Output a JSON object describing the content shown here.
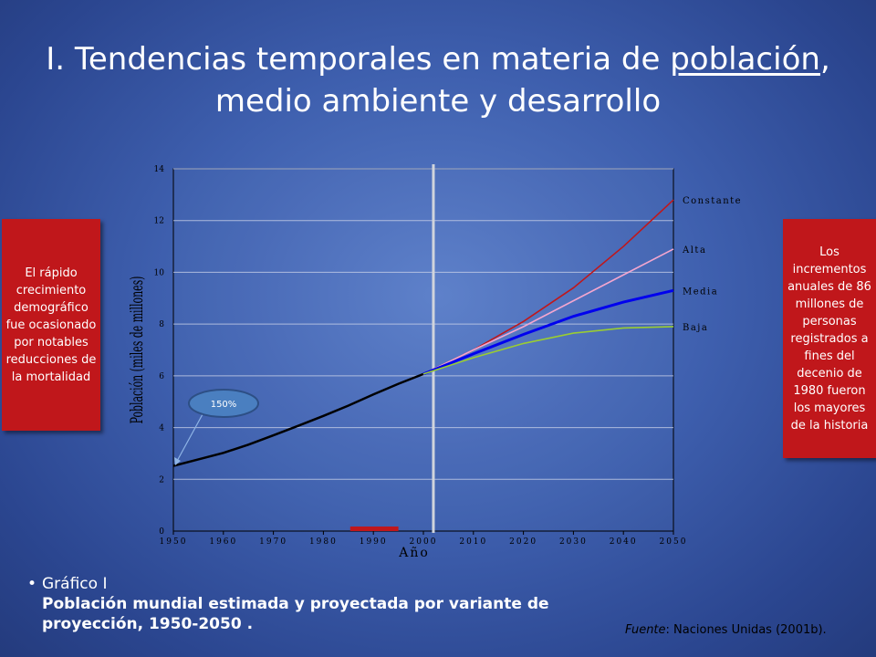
{
  "slide": {
    "title_part1": "I. Tendencias temporales en materia de ",
    "title_underlined": "población",
    "title_part2": ",",
    "title_line2": "medio ambiente y desarrollo",
    "left_note": "El rápido crecimiento demográfico fue ocasionado por notables reducciones de la mortalidad",
    "right_note": "Los incrementos anuales de 86 millones de personas registrados a fines del decenio de 1980 fueron los mayores de la historia",
    "bullet": "•",
    "caption_line1": "Gráfico I",
    "caption_line2": "Población mundial estimada y proyectada por variante de proyección, 1950-2050 .",
    "source_italic": "Fuente",
    "source_rest": ": Naciones Unidas (2001b).",
    "colors": {
      "note_box": "#c0171b",
      "callout_bubble": "#4a7fc0"
    }
  },
  "chart_data": {
    "type": "line",
    "xlabel": "Año",
    "ylabel": "Población (miles de millones)",
    "xlim": [
      1950,
      2050
    ],
    "ylim": [
      0,
      14
    ],
    "xticks": [
      1950,
      1960,
      1970,
      1980,
      1990,
      2000,
      2010,
      2020,
      2030,
      2040,
      2050
    ],
    "yticks": [
      0,
      2,
      4,
      6,
      8,
      10,
      12,
      14
    ],
    "grid": true,
    "divider_year": 2002,
    "callout": "150%",
    "highlight_range": [
      1985,
      1995
    ],
    "series": [
      {
        "name": "",
        "color": "#000000",
        "x": [
          1950,
          1955,
          1960,
          1965,
          1970,
          1975,
          1980,
          1985,
          1990,
          1995,
          2000
        ],
        "y": [
          2.52,
          2.77,
          3.02,
          3.34,
          3.7,
          4.07,
          4.45,
          4.85,
          5.28,
          5.69,
          6.07
        ]
      },
      {
        "name": "Constante",
        "color": "#c0171b",
        "x": [
          2000,
          2010,
          2020,
          2030,
          2040,
          2050
        ],
        "y": [
          6.07,
          7.0,
          8.1,
          9.4,
          11.0,
          12.8
        ]
      },
      {
        "name": "Alta",
        "color": "#f4a6cf",
        "x": [
          2000,
          2010,
          2020,
          2030,
          2040,
          2050
        ],
        "y": [
          6.07,
          7.0,
          7.9,
          8.9,
          9.9,
          10.9
        ]
      },
      {
        "name": "Media",
        "color": "#0000ee",
        "x": [
          2000,
          2010,
          2020,
          2030,
          2040,
          2050
        ],
        "y": [
          6.07,
          6.85,
          7.6,
          8.3,
          8.85,
          9.3
        ]
      },
      {
        "name": "Baja",
        "color": "#9acd32",
        "x": [
          2000,
          2010,
          2020,
          2030,
          2040,
          2050
        ],
        "y": [
          6.07,
          6.7,
          7.25,
          7.65,
          7.85,
          7.9
        ]
      }
    ]
  }
}
